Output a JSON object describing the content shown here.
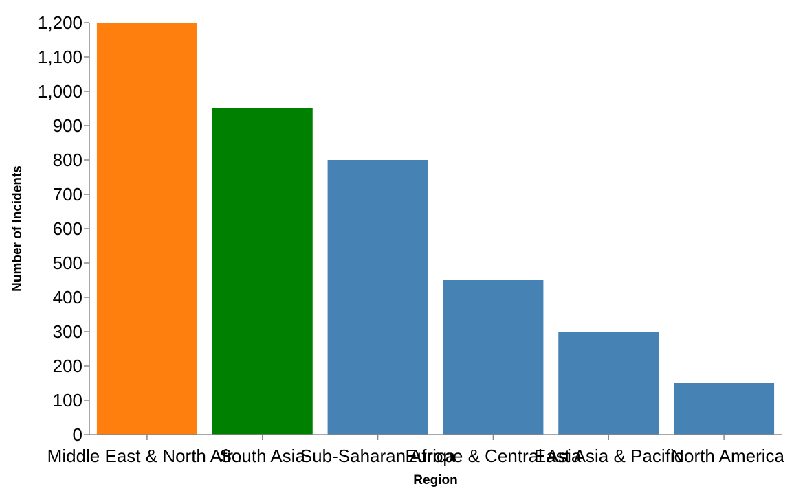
{
  "chart_data": {
    "type": "bar",
    "title": "",
    "xlabel": "Region",
    "ylabel": "Number of Incidents",
    "categories": [
      "Middle East & North Afr...",
      "South Asia",
      "Sub-Saharan Africa",
      "Europe & Central Asia",
      "East Asia & Pacific",
      "North America"
    ],
    "values": [
      1200,
      950,
      800,
      450,
      300,
      150
    ],
    "colors": [
      "#ff7f0e",
      "#008000",
      "#4682b4",
      "#4682b4",
      "#4682b4",
      "#4682b4"
    ],
    "ylim": [
      0,
      1200
    ],
    "yticks": [
      0,
      100,
      200,
      300,
      400,
      500,
      600,
      700,
      800,
      900,
      1000,
      1100,
      1200
    ],
    "ytick_labels": [
      "0",
      "100",
      "200",
      "300",
      "400",
      "500",
      "600",
      "700",
      "800",
      "900",
      "1,000",
      "1,100",
      "1,200"
    ],
    "grid": false,
    "legend": "none"
  }
}
